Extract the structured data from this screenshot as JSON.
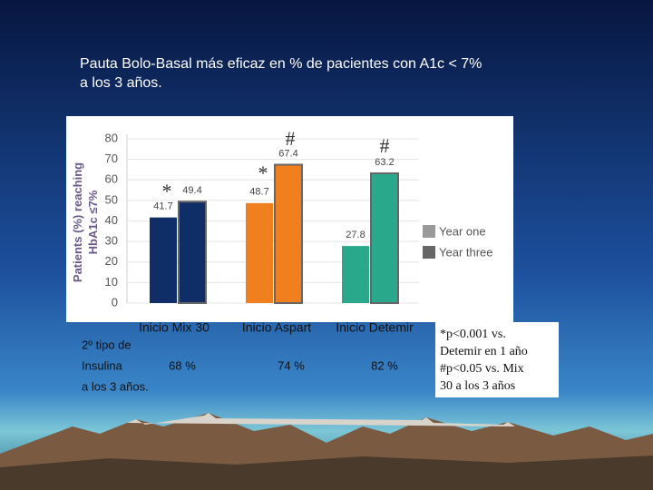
{
  "slide": {
    "title": [
      "Pauta Bolo-Basal más eficaz en % de pacientes con A1c < 7%",
      "a los 3 años."
    ],
    "table": {
      "label": [
        "2º tipo de",
        "Insulina",
        "a los 3 años."
      ],
      "values": [
        "68 %",
        "74 %",
        "82 %"
      ]
    },
    "footnote": [
      "*p<0.001 vs.",
      "Detemir en 1 año",
      "#p<0.05 vs. Mix",
      "30 a los 3 años"
    ]
  },
  "chart_data": {
    "type": "bar",
    "ylabel": [
      "Patients (%) reaching",
      "HbA1c ≤7%"
    ],
    "categories": [
      "Inicio Mix 30",
      "Inicio Aspart",
      "Inicio Detemir"
    ],
    "category_colors": [
      "#0f2d66",
      "#f0801e",
      "#2aa88c"
    ],
    "series": [
      {
        "name": "Year one",
        "color": "#999999",
        "values": [
          41.7,
          48.7,
          27.8
        ]
      },
      {
        "name": "Year three",
        "color": "#666666",
        "values": [
          49.4,
          67.4,
          63.2
        ]
      }
    ],
    "annotations": [
      "*",
      "*",
      "#",
      "#"
    ],
    "ylim": [
      0,
      80
    ],
    "yticks": [
      0,
      10,
      20,
      30,
      40,
      50,
      60,
      70,
      80
    ],
    "grid": true
  }
}
